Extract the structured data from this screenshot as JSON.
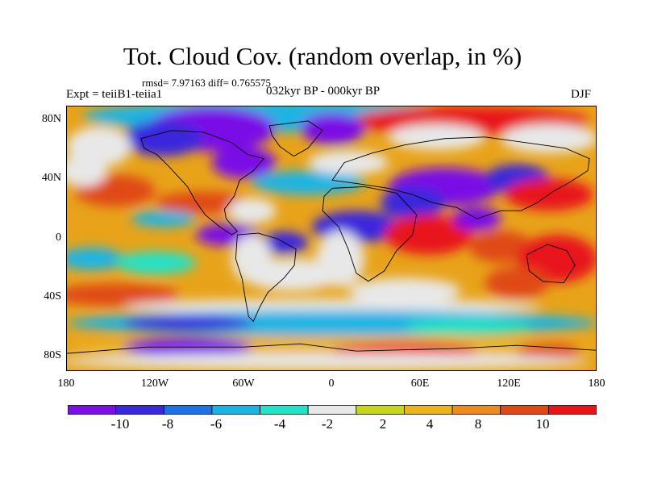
{
  "title": "Tot. Cloud Cov. (random overlap, in %)",
  "stats": "rmsd= 7.97163 diff= 0.765575",
  "experiment": "Expt = teiiB1-teiia1",
  "period": "032kyr BP - 000kyr BP",
  "season": "DJF",
  "lat_labels": [
    {
      "text": "80N",
      "lat": 80
    },
    {
      "text": "40N",
      "lat": 40
    },
    {
      "text": "0",
      "lat": 0
    },
    {
      "text": "40S",
      "lat": -40
    },
    {
      "text": "80S",
      "lat": -80
    }
  ],
  "lon_labels": [
    {
      "text": "180",
      "lon": -180
    },
    {
      "text": "120W",
      "lon": -120
    },
    {
      "text": "60W",
      "lon": -60
    },
    {
      "text": "0",
      "lon": 0
    },
    {
      "text": "60E",
      "lon": 60
    },
    {
      "text": "120E",
      "lon": 120
    },
    {
      "text": "180",
      "lon": 180
    }
  ],
  "colorbar": {
    "colors": [
      "#7a10e6",
      "#3a28dd",
      "#1f72e6",
      "#1ab4e4",
      "#22e2c8",
      "#e8e8e8",
      "#c6d61a",
      "#eab41a",
      "#ef8a1c",
      "#e04a12",
      "#e8141a"
    ],
    "labels": [
      "-10",
      "-8",
      "-6",
      "-4",
      "-2",
      "2",
      "4",
      "8",
      "10"
    ]
  },
  "chart_data": {
    "type": "heatmap",
    "title": "Tot. Cloud Cov. (random overlap, in %)",
    "variable": "total cloud cover difference",
    "units": "%",
    "contour_levels": [
      -10,
      -8,
      -6,
      -4,
      -2,
      2,
      4,
      8,
      10
    ],
    "xlim": [
      -180,
      180
    ],
    "ylim": [
      -90,
      90
    ],
    "qualitative_pattern": {
      "strong_decrease": [
        "Canadian Arctic / North America high latitudes",
        "Eurasian mid-latitudes",
        "Southern Ocean ~60S",
        "parts of Antarctica"
      ],
      "strong_increase": [
        "Tropical Indian Ocean",
        "Western Pacific warm pool",
        "North Pacific ~30N",
        "southern Africa / Australia"
      ]
    }
  }
}
